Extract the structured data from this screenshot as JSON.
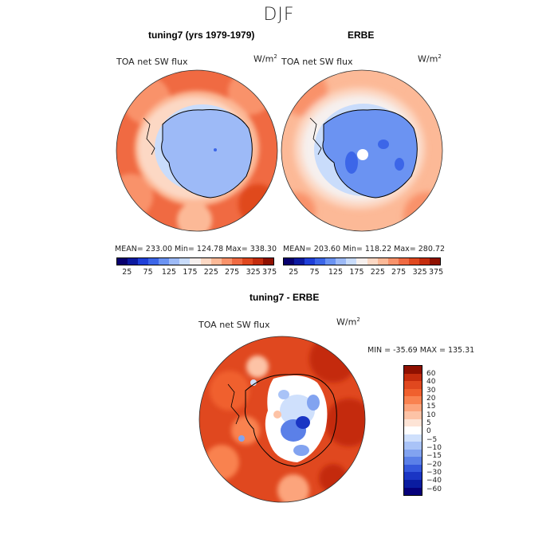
{
  "figure": {
    "title": "DJF"
  },
  "panels": [
    {
      "title": "tuning7 (yrs 1979-1979)",
      "variable": "TOA net SW flux",
      "units_base": "W/m",
      "units_exp": "2",
      "stats": "MEAN= 233.00   Min= 124.78   Max= 338.30"
    },
    {
      "title": "ERBE",
      "variable": "TOA net SW flux",
      "units_base": "W/m",
      "units_exp": "2",
      "stats": "MEAN= 203.60   Min= 118.22   Max= 280.72"
    },
    {
      "title": "tuning7 - ERBE",
      "variable": "TOA net SW flux",
      "units_base": "W/m",
      "units_exp": "2",
      "stats": "MIN = -35.69  MAX = 135.31"
    }
  ],
  "colorbar_abs": {
    "colors": [
      "#08006e",
      "#0c1aa0",
      "#1f3fd8",
      "#3c66e8",
      "#6b93f2",
      "#9dbaf7",
      "#c9dcfb",
      "#f6f0ee",
      "#fcd8c4",
      "#fcb997",
      "#f9926a",
      "#f06a42",
      "#e0481f",
      "#c42c0d",
      "#8f1000"
    ],
    "tick_labels": [
      "25",
      "75",
      "125",
      "175",
      "225",
      "275",
      "325",
      "375"
    ]
  },
  "colorbar_diff": {
    "colors": [
      "#8f1000",
      "#c42c0d",
      "#e0481f",
      "#f0602e",
      "#f98250",
      "#fca47c",
      "#fdc3a6",
      "#fde4d6",
      "#ffffff",
      "#cfe0fc",
      "#a9c3f7",
      "#82a3f0",
      "#5b80e8",
      "#3558dc",
      "#1a35c4",
      "#0a1ca0",
      "#06007a"
    ],
    "tick_labels": [
      "60",
      "40",
      "30",
      "20",
      "15",
      "10",
      "5",
      "0",
      "−5",
      "−10",
      "−15",
      "−20",
      "−30",
      "−40",
      "−60"
    ]
  },
  "chart_data": {
    "type": "heatmap",
    "title": "DJF",
    "description_fields": [
      {
        "panel": "tuning7 (yrs 1979-1979)",
        "mean": 233.0,
        "min": 124.78,
        "max": 338.3,
        "range": [
          25,
          375
        ]
      },
      {
        "panel": "ERBE",
        "mean": 203.6,
        "min": 118.22,
        "max": 280.72,
        "range": [
          25,
          375
        ]
      },
      {
        "panel": "tuning7 - ERBE",
        "min": -35.69,
        "max": 135.31,
        "levels": [
          -60,
          -40,
          -30,
          -20,
          -15,
          -10,
          -5,
          0,
          5,
          10,
          15,
          20,
          30,
          40,
          60
        ]
      }
    ]
  }
}
